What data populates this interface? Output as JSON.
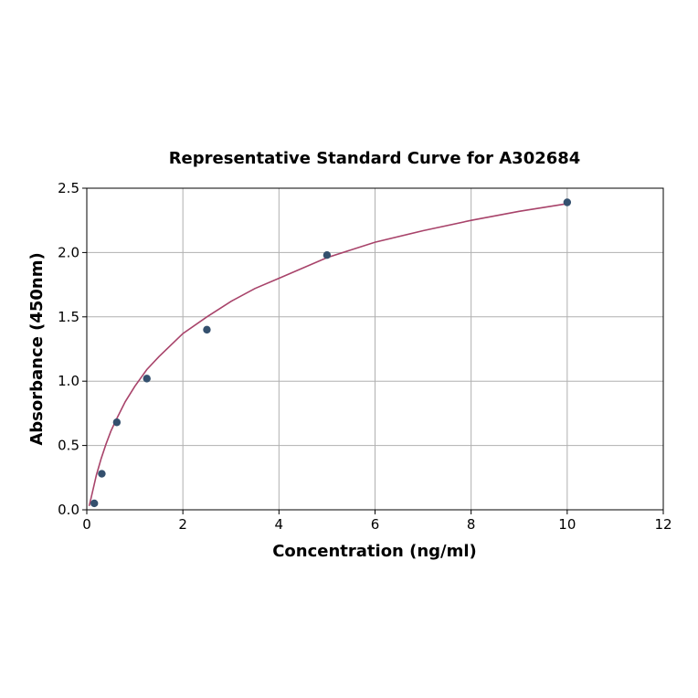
{
  "chart_data": {
    "type": "scatter",
    "title": "Representative Standard Curve for A302684",
    "xlabel": "Concentration (ng/ml)",
    "ylabel": "Absorbance (450nm)",
    "xlim": [
      0,
      12
    ],
    "ylim": [
      0,
      2.5
    ],
    "xticks": [
      "0",
      "2",
      "4",
      "6",
      "8",
      "10",
      "12"
    ],
    "yticks": [
      "0.0",
      "0.5",
      "1.0",
      "1.5",
      "2.0",
      "2.5"
    ],
    "grid": true,
    "series": [
      {
        "type": "scatter",
        "color": "#34506e",
        "x": [
          0.156,
          0.3125,
          0.625,
          1.25,
          2.5,
          5,
          10
        ],
        "y": [
          0.05,
          0.28,
          0.68,
          1.02,
          1.4,
          1.98,
          2.39
        ]
      },
      {
        "type": "line",
        "color": "#a8436a",
        "x": [
          0.05,
          0.1,
          0.2,
          0.3,
          0.4,
          0.5,
          0.6,
          0.8,
          1.0,
          1.25,
          1.5,
          2.0,
          2.5,
          3.0,
          3.5,
          4.0,
          5.0,
          6.0,
          7.0,
          8.0,
          9.0,
          10.0
        ],
        "y": [
          0.03,
          0.11,
          0.27,
          0.4,
          0.51,
          0.61,
          0.69,
          0.84,
          0.96,
          1.09,
          1.19,
          1.37,
          1.5,
          1.62,
          1.72,
          1.8,
          1.96,
          2.08,
          2.17,
          2.25,
          2.32,
          2.38
        ]
      }
    ]
  }
}
